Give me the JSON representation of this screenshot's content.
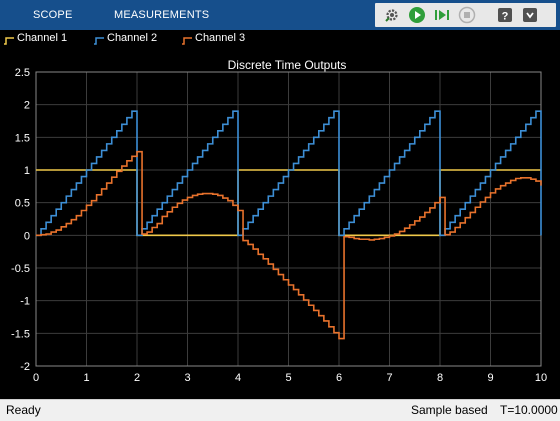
{
  "toolstrip": {
    "tabs": [
      "SCOPE",
      "MEASUREMENTS"
    ],
    "quick_access": [
      "settings-icon",
      "run-icon",
      "step-forward-icon",
      "stop-icon",
      "help-icon",
      "expand-icon"
    ]
  },
  "status": {
    "left": "Ready",
    "mode": "Sample based",
    "time": "T=10.0000"
  },
  "colors": {
    "channel1": "#f0c94a",
    "channel2": "#3d8fd6",
    "channel3": "#e8722c",
    "toolstrip": "#164f8c",
    "plot_bg": "#000000"
  },
  "chart_data": {
    "type": "line",
    "title": "Discrete Time Outputs",
    "xlabel": "",
    "ylabel": "",
    "xlim": [
      0,
      10
    ],
    "ylim": [
      -2,
      2.5
    ],
    "xticks": [
      "0",
      "1",
      "2",
      "3",
      "4",
      "5",
      "6",
      "7",
      "8",
      "9",
      "10"
    ],
    "yticks": [
      "-2",
      "-1.5",
      "-1",
      "-0.5",
      "0",
      "0.5",
      "1",
      "1.5",
      "2",
      "2.5"
    ],
    "grid": true,
    "legend_position": "top",
    "step": true,
    "x": [
      0.0,
      0.1,
      0.2,
      0.3,
      0.4,
      0.5,
      0.6,
      0.7,
      0.8,
      0.9,
      1.0,
      1.1,
      1.2,
      1.3,
      1.4,
      1.5,
      1.6,
      1.7,
      1.8,
      1.9,
      2.0,
      2.1,
      2.2,
      2.3,
      2.4,
      2.5,
      2.6,
      2.7,
      2.8,
      2.9,
      3.0,
      3.1,
      3.2,
      3.3,
      3.4,
      3.5,
      3.6,
      3.7,
      3.8,
      3.9,
      4.0,
      4.1,
      4.2,
      4.3,
      4.4,
      4.5,
      4.6,
      4.7,
      4.8,
      4.9,
      5.0,
      5.1,
      5.2,
      5.3,
      5.4,
      5.5,
      5.6,
      5.7,
      5.8,
      5.9,
      6.0,
      6.1,
      6.2,
      6.3,
      6.4,
      6.5,
      6.6,
      6.7,
      6.8,
      6.9,
      7.0,
      7.1,
      7.2,
      7.3,
      7.4,
      7.5,
      7.6,
      7.7,
      7.8,
      7.9,
      8.0,
      8.1,
      8.2,
      8.3,
      8.4,
      8.5,
      8.6,
      8.7,
      8.8,
      8.9,
      9.0,
      9.1,
      9.2,
      9.3,
      9.4,
      9.5,
      9.6,
      9.7,
      9.8,
      9.9,
      10.0
    ],
    "series": [
      {
        "name": "Channel 1",
        "values": [
          1,
          1,
          1,
          1,
          1,
          1,
          1,
          1,
          1,
          1,
          1,
          1,
          1,
          1,
          1,
          1,
          1,
          1,
          1,
          1,
          0,
          0,
          0,
          0,
          0,
          0,
          0,
          0,
          0,
          0,
          0,
          0,
          0,
          0,
          0,
          0,
          0,
          0,
          0,
          0,
          1,
          1,
          1,
          1,
          1,
          1,
          1,
          1,
          1,
          1,
          1,
          1,
          1,
          1,
          1,
          1,
          1,
          1,
          1,
          1,
          0,
          0,
          0,
          0,
          0,
          0,
          0,
          0,
          0,
          0,
          0,
          0,
          0,
          0,
          0,
          0,
          0,
          0,
          0,
          0,
          1,
          1,
          1,
          1,
          1,
          1,
          1,
          1,
          1,
          1,
          1,
          1,
          1,
          1,
          1,
          1,
          1,
          1,
          1,
          1,
          1
        ]
      },
      {
        "name": "Channel 2",
        "values": [
          0.0,
          0.1,
          0.2,
          0.3,
          0.4,
          0.5,
          0.6,
          0.7,
          0.8,
          0.9,
          1.0,
          1.1,
          1.2,
          1.3,
          1.4,
          1.5,
          1.6,
          1.7,
          1.8,
          1.9,
          0.0,
          0.1,
          0.2,
          0.3,
          0.4,
          0.5,
          0.6,
          0.7,
          0.8,
          0.9,
          1.0,
          1.1,
          1.2,
          1.3,
          1.4,
          1.5,
          1.6,
          1.7,
          1.8,
          1.9,
          0.0,
          0.1,
          0.2,
          0.3,
          0.4,
          0.5,
          0.6,
          0.7,
          0.8,
          0.9,
          1.0,
          1.1,
          1.2,
          1.3,
          1.4,
          1.5,
          1.6,
          1.7,
          1.8,
          1.9,
          0.0,
          0.1,
          0.2,
          0.3,
          0.4,
          0.5,
          0.6,
          0.7,
          0.8,
          0.9,
          1.0,
          1.1,
          1.2,
          1.3,
          1.4,
          1.5,
          1.6,
          1.7,
          1.8,
          1.9,
          0.0,
          0.1,
          0.2,
          0.3,
          0.4,
          0.5,
          0.6,
          0.7,
          0.8,
          0.9,
          1.0,
          1.1,
          1.2,
          1.3,
          1.4,
          1.5,
          1.6,
          1.7,
          1.8,
          1.9,
          0.0
        ]
      },
      {
        "name": "Channel 3",
        "values": [
          0.0,
          0.01,
          0.02,
          0.05,
          0.08,
          0.13,
          0.18,
          0.24,
          0.3,
          0.38,
          0.46,
          0.53,
          0.62,
          0.71,
          0.8,
          0.89,
          0.98,
          1.06,
          1.14,
          1.21,
          1.28,
          0.02,
          0.05,
          0.12,
          0.18,
          0.29,
          0.36,
          0.43,
          0.49,
          0.54,
          0.58,
          0.61,
          0.63,
          0.64,
          0.64,
          0.63,
          0.61,
          0.57,
          0.53,
          0.46,
          0.38,
          -0.08,
          -0.14,
          -0.21,
          -0.29,
          -0.36,
          -0.44,
          -0.52,
          -0.6,
          -0.68,
          -0.76,
          -0.83,
          -0.91,
          -0.99,
          -1.07,
          -1.15,
          -1.23,
          -1.31,
          -1.4,
          -1.49,
          -1.58,
          -0.02,
          -0.03,
          -0.05,
          -0.06,
          -0.06,
          -0.07,
          -0.06,
          -0.05,
          -0.03,
          -0.01,
          0.02,
          0.06,
          0.11,
          0.16,
          0.22,
          0.28,
          0.35,
          0.42,
          0.5,
          0.58,
          0.01,
          0.05,
          0.12,
          0.19,
          0.27,
          0.35,
          0.43,
          0.51,
          0.58,
          0.65,
          0.71,
          0.76,
          0.8,
          0.84,
          0.87,
          0.88,
          0.88,
          0.86,
          0.83,
          0.76
        ]
      }
    ]
  }
}
